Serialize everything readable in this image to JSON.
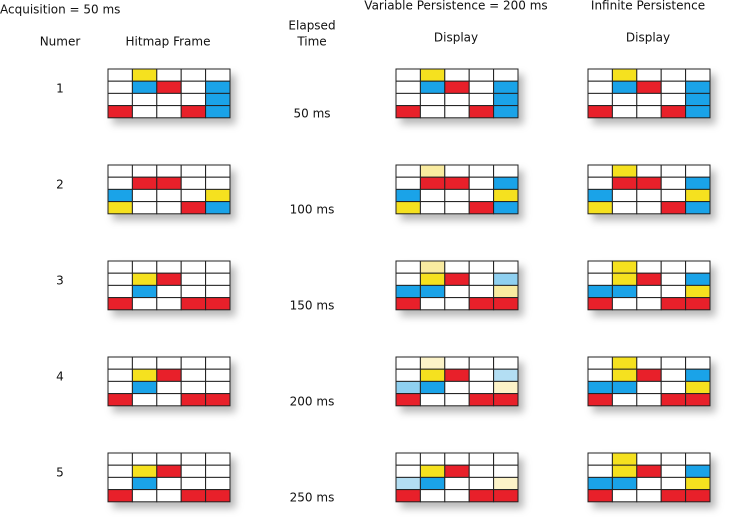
{
  "header": {
    "acquisition": "Acquisition = 50 ms",
    "number_label": "Numer",
    "hitmap_label": "Hitmap Frame",
    "elapsed_label": "Elapsed",
    "time_label": "Time",
    "variable_title": "Variable Persistence = 200 ms",
    "variable_display": "Display",
    "infinite_title": "Infinite Persistence",
    "infinite_display": "Display"
  },
  "rows": [
    {
      "number": "1",
      "time": "50 ms"
    },
    {
      "number": "2",
      "time": "100 ms"
    },
    {
      "number": "3",
      "time": "150 ms"
    },
    {
      "number": "4",
      "time": "200 ms"
    },
    {
      "number": "5",
      "time": "250 ms"
    }
  ]
}
